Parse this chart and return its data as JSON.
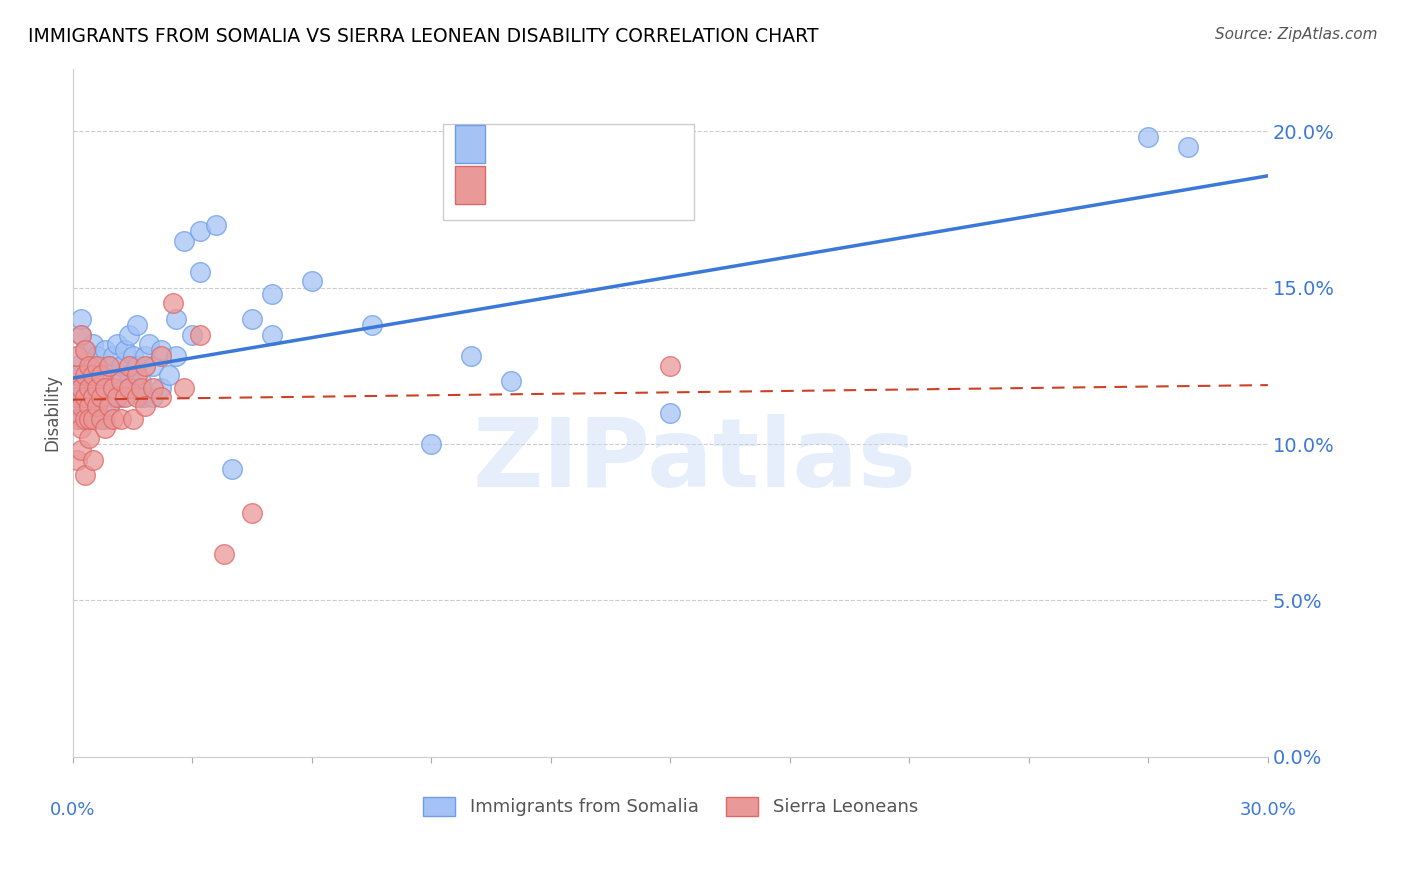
{
  "title": "IMMIGRANTS FROM SOMALIA VS SIERRA LEONEAN DISABILITY CORRELATION CHART",
  "source": "Source: ZipAtlas.com",
  "ylabel": "Disability",
  "x_min": 0.0,
  "x_max": 0.3,
  "y_min": 0.0,
  "y_max": 0.22,
  "y_ticks": [
    0.0,
    0.05,
    0.1,
    0.15,
    0.2
  ],
  "y_tick_labels": [
    "0.0%",
    "5.0%",
    "10.0%",
    "15.0%",
    "20.0%"
  ],
  "somalia_color": "#a4c2f4",
  "sierra_color": "#ea9999",
  "somalia_edge_color": "#6d9eeb",
  "sierra_edge_color": "#e06666",
  "somalia_line_color": "#3c78d8",
  "sierra_line_color": "#cc4125",
  "somalia_line_dash": false,
  "sierra_line_dash": true,
  "watermark": "ZIPatlas",
  "watermark_color": "#c9daf8",
  "somalia_points": [
    [
      0.001,
      0.118
    ],
    [
      0.001,
      0.112
    ],
    [
      0.001,
      0.125
    ],
    [
      0.002,
      0.108
    ],
    [
      0.002,
      0.122
    ],
    [
      0.002,
      0.135
    ],
    [
      0.002,
      0.14
    ],
    [
      0.002,
      0.115
    ],
    [
      0.003,
      0.112
    ],
    [
      0.003,
      0.118
    ],
    [
      0.003,
      0.13
    ],
    [
      0.004,
      0.108
    ],
    [
      0.004,
      0.115
    ],
    [
      0.004,
      0.122
    ],
    [
      0.005,
      0.11
    ],
    [
      0.005,
      0.118
    ],
    [
      0.005,
      0.125
    ],
    [
      0.005,
      0.132
    ],
    [
      0.006,
      0.112
    ],
    [
      0.006,
      0.12
    ],
    [
      0.006,
      0.128
    ],
    [
      0.007,
      0.115
    ],
    [
      0.007,
      0.122
    ],
    [
      0.008,
      0.108
    ],
    [
      0.008,
      0.118
    ],
    [
      0.008,
      0.13
    ],
    [
      0.009,
      0.112
    ],
    [
      0.009,
      0.125
    ],
    [
      0.01,
      0.115
    ],
    [
      0.01,
      0.118
    ],
    [
      0.01,
      0.128
    ],
    [
      0.011,
      0.12
    ],
    [
      0.011,
      0.132
    ],
    [
      0.012,
      0.115
    ],
    [
      0.012,
      0.125
    ],
    [
      0.013,
      0.118
    ],
    [
      0.013,
      0.13
    ],
    [
      0.014,
      0.122
    ],
    [
      0.014,
      0.135
    ],
    [
      0.015,
      0.128
    ],
    [
      0.015,
      0.118
    ],
    [
      0.016,
      0.125
    ],
    [
      0.016,
      0.138
    ],
    [
      0.017,
      0.12
    ],
    [
      0.017,
      0.115
    ],
    [
      0.018,
      0.128
    ],
    [
      0.018,
      0.115
    ],
    [
      0.019,
      0.132
    ],
    [
      0.02,
      0.115
    ],
    [
      0.02,
      0.125
    ],
    [
      0.022,
      0.118
    ],
    [
      0.022,
      0.13
    ],
    [
      0.024,
      0.122
    ],
    [
      0.026,
      0.128
    ],
    [
      0.026,
      0.14
    ],
    [
      0.028,
      0.165
    ],
    [
      0.03,
      0.135
    ],
    [
      0.032,
      0.155
    ],
    [
      0.032,
      0.168
    ],
    [
      0.036,
      0.17
    ],
    [
      0.04,
      0.092
    ],
    [
      0.045,
      0.14
    ],
    [
      0.05,
      0.135
    ],
    [
      0.05,
      0.148
    ],
    [
      0.06,
      0.152
    ],
    [
      0.075,
      0.138
    ],
    [
      0.09,
      0.1
    ],
    [
      0.1,
      0.128
    ],
    [
      0.11,
      0.12
    ],
    [
      0.15,
      0.11
    ],
    [
      0.27,
      0.198
    ],
    [
      0.28,
      0.195
    ]
  ],
  "sierra_points": [
    [
      0.001,
      0.115
    ],
    [
      0.001,
      0.108
    ],
    [
      0.001,
      0.122
    ],
    [
      0.001,
      0.095
    ],
    [
      0.001,
      0.128
    ],
    [
      0.002,
      0.105
    ],
    [
      0.002,
      0.118
    ],
    [
      0.002,
      0.112
    ],
    [
      0.002,
      0.135
    ],
    [
      0.002,
      0.098
    ],
    [
      0.003,
      0.108
    ],
    [
      0.003,
      0.122
    ],
    [
      0.003,
      0.115
    ],
    [
      0.003,
      0.09
    ],
    [
      0.003,
      0.13
    ],
    [
      0.004,
      0.112
    ],
    [
      0.004,
      0.118
    ],
    [
      0.004,
      0.125
    ],
    [
      0.004,
      0.102
    ],
    [
      0.004,
      0.108
    ],
    [
      0.005,
      0.115
    ],
    [
      0.005,
      0.122
    ],
    [
      0.005,
      0.108
    ],
    [
      0.005,
      0.095
    ],
    [
      0.006,
      0.118
    ],
    [
      0.006,
      0.112
    ],
    [
      0.006,
      0.125
    ],
    [
      0.007,
      0.108
    ],
    [
      0.007,
      0.115
    ],
    [
      0.007,
      0.122
    ],
    [
      0.008,
      0.105
    ],
    [
      0.008,
      0.118
    ],
    [
      0.009,
      0.112
    ],
    [
      0.009,
      0.125
    ],
    [
      0.01,
      0.118
    ],
    [
      0.01,
      0.108
    ],
    [
      0.011,
      0.115
    ],
    [
      0.012,
      0.12
    ],
    [
      0.012,
      0.108
    ],
    [
      0.013,
      0.115
    ],
    [
      0.014,
      0.118
    ],
    [
      0.014,
      0.125
    ],
    [
      0.015,
      0.108
    ],
    [
      0.016,
      0.115
    ],
    [
      0.016,
      0.122
    ],
    [
      0.017,
      0.118
    ],
    [
      0.018,
      0.112
    ],
    [
      0.018,
      0.125
    ],
    [
      0.02,
      0.118
    ],
    [
      0.022,
      0.115
    ],
    [
      0.022,
      0.128
    ],
    [
      0.025,
      0.145
    ],
    [
      0.028,
      0.118
    ],
    [
      0.032,
      0.135
    ],
    [
      0.038,
      0.065
    ],
    [
      0.045,
      0.078
    ],
    [
      0.15,
      0.125
    ]
  ]
}
